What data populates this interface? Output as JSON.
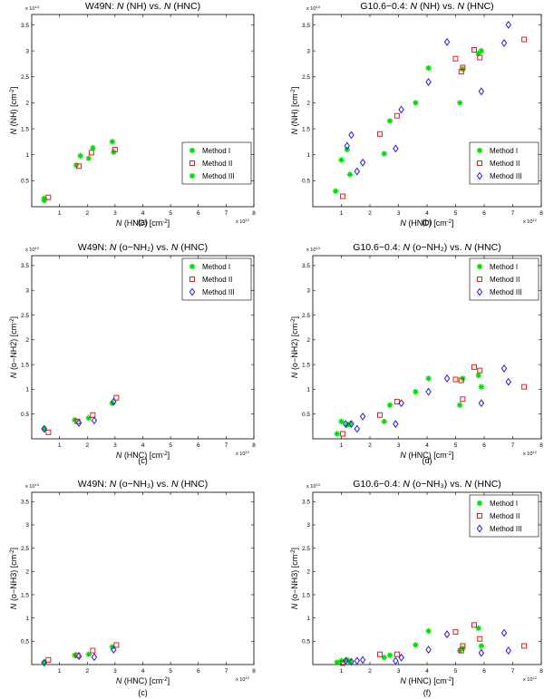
{
  "chart_data": [
    {
      "type": "scatter",
      "title_prefix": "W49N:  ",
      "title_n1": "N",
      "title_mid": " (NH) vs. ",
      "title_n2": "N",
      "title_suffix": " (HNC)",
      "ylabel": "N (NH) [cm^-2]",
      "xlabel": "N (HNC) [cm^-2]",
      "x_exp": "x 10^12",
      "y_exp": "x 10^13",
      "xlim": [
        0,
        8
      ],
      "ylim": [
        0,
        3.7
      ],
      "xticks": [
        "1",
        "2",
        "3",
        "4",
        "5",
        "6",
        "7",
        "8"
      ],
      "yticks": [
        "0.5",
        "1",
        "1.5",
        "2",
        "2.5",
        "3",
        "3.5"
      ],
      "caption": "(a)",
      "legend_position": "bottom-right",
      "series": [
        {
          "name": "Method I",
          "marker": "star",
          "color": "#00dd00",
          "points": [
            [
              0.45,
              0.16
            ],
            [
              1.6,
              0.8
            ],
            [
              2.05,
              0.93
            ],
            [
              2.95,
              1.05
            ]
          ]
        },
        {
          "name": "Method II",
          "marker": "square",
          "color": "#dd2222",
          "points": [
            [
              0.6,
              0.18
            ],
            [
              1.7,
              0.78
            ],
            [
              2.15,
              1.04
            ],
            [
              3.0,
              1.1
            ]
          ]
        },
        {
          "name": "Method III",
          "marker": "star",
          "color": "#00dd00",
          "points": [
            [
              0.45,
              0.12
            ],
            [
              1.75,
              0.98
            ],
            [
              2.2,
              1.13
            ],
            [
              2.9,
              1.25
            ]
          ]
        }
      ]
    },
    {
      "type": "scatter",
      "title_prefix": "G10.6−0.4:  ",
      "title_n1": "N",
      "title_mid": " (NH) vs. ",
      "title_n2": "N",
      "title_suffix": " (HNC)",
      "ylabel": "N (NH) [cm^-2]",
      "xlabel": "N (HNC) [cm^-2]",
      "x_exp": "x 10^12",
      "y_exp": "x 10^13",
      "xlim": [
        0,
        8
      ],
      "ylim": [
        0,
        3.7
      ],
      "xticks": [
        "1",
        "2",
        "3",
        "4",
        "5",
        "6",
        "7",
        "8"
      ],
      "yticks": [
        "0.5",
        "1",
        "1.5",
        "2",
        "2.5",
        "3",
        "3.5"
      ],
      "caption": "(b)",
      "legend_position": "bottom-right",
      "series": [
        {
          "name": "Method I",
          "marker": "star",
          "color": "#00dd00",
          "points": [
            [
              0.8,
              0.3
            ],
            [
              1.0,
              0.9
            ],
            [
              1.2,
              1.1
            ],
            [
              1.3,
              0.62
            ],
            [
              2.5,
              1.02
            ],
            [
              2.7,
              1.65
            ],
            [
              3.6,
              2.0
            ],
            [
              4.05,
              2.67
            ],
            [
              5.15,
              2.0
            ],
            [
              5.25,
              2.65
            ],
            [
              5.8,
              2.95
            ],
            [
              5.9,
              3.0
            ]
          ]
        },
        {
          "name": "Method II",
          "marker": "square",
          "color": "#dd2222",
          "points": [
            [
              1.05,
              0.2
            ],
            [
              2.35,
              1.4
            ],
            [
              2.95,
              1.75
            ],
            [
              5.0,
              2.85
            ],
            [
              5.2,
              2.6
            ],
            [
              5.25,
              2.68
            ],
            [
              5.65,
              3.02
            ],
            [
              5.85,
              2.87
            ],
            [
              7.4,
              3.22
            ]
          ]
        },
        {
          "name": "Method III",
          "marker": "diamond",
          "color": "#2222dd",
          "points": [
            [
              1.2,
              1.17
            ],
            [
              1.35,
              1.38
            ],
            [
              1.55,
              0.68
            ],
            [
              1.75,
              0.85
            ],
            [
              2.9,
              1.12
            ],
            [
              3.1,
              1.87
            ],
            [
              4.05,
              2.4
            ],
            [
              4.7,
              3.17
            ],
            [
              5.9,
              2.22
            ],
            [
              6.7,
              3.15
            ],
            [
              6.85,
              3.5
            ]
          ]
        }
      ]
    },
    {
      "type": "scatter",
      "title_prefix": "W49N:  ",
      "title_n1": "N",
      "title_mid": " (o−NH₂) vs. ",
      "title_n2": "N",
      "title_suffix": " (HNC)",
      "ylabel": "N (o−NH2) [cm^-2]",
      "xlabel": "N (HNC) [cm^-2]",
      "x_exp": "x 10^12",
      "y_exp": "x 10^13",
      "xlim": [
        0,
        8
      ],
      "ylim": [
        0,
        3.7
      ],
      "xticks": [
        "1",
        "2",
        "3",
        "4",
        "5",
        "6",
        "7",
        "8"
      ],
      "yticks": [
        "0.5",
        "1",
        "1.5",
        "2",
        "2.5",
        "3",
        "3.5"
      ],
      "caption": "(c)",
      "legend_position": "top-right",
      "series": [
        {
          "name": "Method I",
          "marker": "star",
          "color": "#00dd00",
          "points": [
            [
              0.45,
              0.2
            ],
            [
              1.55,
              0.38
            ],
            [
              2.05,
              0.42
            ],
            [
              2.9,
              0.72
            ]
          ]
        },
        {
          "name": "Method II",
          "marker": "square",
          "color": "#dd2222",
          "points": [
            [
              0.6,
              0.13
            ],
            [
              1.65,
              0.35
            ],
            [
              2.2,
              0.48
            ],
            [
              3.05,
              0.83
            ]
          ]
        },
        {
          "name": "Method III",
          "marker": "diamond",
          "color": "#2222dd",
          "points": [
            [
              0.45,
              0.2
            ],
            [
              1.7,
              0.32
            ],
            [
              2.25,
              0.37
            ],
            [
              2.95,
              0.75
            ]
          ]
        }
      ]
    },
    {
      "type": "scatter",
      "title_prefix": "G10.6−0.4:  ",
      "title_n1": "N",
      "title_mid": " (o−NH₂) vs. ",
      "title_n2": "N",
      "title_suffix": " (HNC)",
      "ylabel": "N (o−NH2) [cm^-2]",
      "xlabel": "N (HNC) [cm^-2]",
      "x_exp": "x 10^12",
      "y_exp": "x 10^13",
      "xlim": [
        0,
        8
      ],
      "ylim": [
        0,
        3.7
      ],
      "xticks": [
        "1",
        "2",
        "3",
        "4",
        "5",
        "6",
        "7",
        "8"
      ],
      "yticks": [
        "0.5",
        "1",
        "1.5",
        "2",
        "2.5",
        "3",
        "3.5"
      ],
      "caption": "(d)",
      "legend_position": "top-right",
      "series": [
        {
          "name": "Method I",
          "marker": "star",
          "color": "#00dd00",
          "points": [
            [
              0.85,
              0.1
            ],
            [
              1.0,
              0.35
            ],
            [
              1.2,
              0.28
            ],
            [
              1.3,
              0.3
            ],
            [
              2.5,
              0.35
            ],
            [
              2.7,
              0.68
            ],
            [
              3.6,
              0.95
            ],
            [
              4.05,
              1.22
            ],
            [
              5.15,
              0.68
            ],
            [
              5.25,
              1.22
            ],
            [
              5.8,
              1.28
            ],
            [
              5.9,
              1.05
            ]
          ]
        },
        {
          "name": "Method II",
          "marker": "square",
          "color": "#dd2222",
          "points": [
            [
              1.05,
              0.1
            ],
            [
              2.35,
              0.48
            ],
            [
              2.95,
              0.75
            ],
            [
              5.0,
              1.2
            ],
            [
              5.2,
              1.18
            ],
            [
              5.25,
              0.8
            ],
            [
              5.65,
              1.45
            ],
            [
              5.85,
              1.38
            ],
            [
              7.4,
              1.05
            ]
          ]
        },
        {
          "name": "Method III",
          "marker": "diamond",
          "color": "#2222dd",
          "points": [
            [
              1.15,
              0.3
            ],
            [
              1.35,
              0.3
            ],
            [
              1.55,
              0.2
            ],
            [
              1.75,
              0.45
            ],
            [
              2.9,
              0.3
            ],
            [
              3.1,
              0.72
            ],
            [
              4.05,
              0.95
            ],
            [
              4.7,
              1.22
            ],
            [
              5.9,
              0.72
            ],
            [
              6.7,
              1.42
            ],
            [
              6.85,
              1.15
            ]
          ]
        }
      ]
    },
    {
      "type": "scatter",
      "title_prefix": "W49N:  ",
      "title_n1": "N",
      "title_mid": " (o−NH₃) vs. ",
      "title_n2": "N",
      "title_suffix": " (HNC)",
      "ylabel": "N (o−NH3) [cm^-2]",
      "xlabel": "N (HNC) [cm^-2]",
      "x_exp": "x 10^12",
      "y_exp": "x 10^13",
      "xlim": [
        0,
        8
      ],
      "ylim": [
        0,
        3.7
      ],
      "xticks": [
        "1",
        "2",
        "3",
        "4",
        "5",
        "6",
        "7",
        "8"
      ],
      "yticks": [
        "0.5",
        "1",
        "1.5",
        "2",
        "2.5",
        "3",
        "3.5"
      ],
      "caption": "(c)",
      "legend_position": "none",
      "series": [
        {
          "name": "Method I",
          "marker": "star",
          "color": "#00dd00",
          "points": [
            [
              0.45,
              0.04
            ],
            [
              1.55,
              0.2
            ],
            [
              2.05,
              0.22
            ],
            [
              2.9,
              0.38
            ]
          ]
        },
        {
          "name": "Method II",
          "marker": "square",
          "color": "#dd2222",
          "points": [
            [
              0.6,
              0.1
            ],
            [
              1.65,
              0.2
            ],
            [
              2.2,
              0.3
            ],
            [
              3.05,
              0.42
            ]
          ]
        },
        {
          "name": "Method III",
          "marker": "diamond",
          "color": "#2222dd",
          "points": [
            [
              0.45,
              0.04
            ],
            [
              1.7,
              0.18
            ],
            [
              2.25,
              0.16
            ],
            [
              2.95,
              0.32
            ]
          ]
        }
      ]
    },
    {
      "type": "scatter",
      "title_prefix": "G10.6−0.4:  ",
      "title_n1": "N",
      "title_mid": " (o−NH₃) vs. ",
      "title_n2": "N",
      "title_suffix": " (HNC)",
      "ylabel": "N (o−NH3) [cm^-2]",
      "xlabel": "N (HNC) [cm^-2]",
      "x_exp": "x 10^12",
      "y_exp": "x 10^13",
      "xlim": [
        0,
        8
      ],
      "ylim": [
        0,
        3.7
      ],
      "xticks": [
        "1",
        "2",
        "3",
        "4",
        "5",
        "6",
        "7",
        "8"
      ],
      "yticks": [
        "0.5",
        "1",
        "1.5",
        "2",
        "2.5",
        "3",
        "3.5"
      ],
      "caption": "(f)",
      "legend_position": "top-right",
      "series": [
        {
          "name": "Method I",
          "marker": "star",
          "color": "#00dd00",
          "points": [
            [
              0.85,
              0.05
            ],
            [
              1.0,
              0.08
            ],
            [
              1.2,
              0.1
            ],
            [
              1.3,
              0.06
            ],
            [
              2.5,
              0.15
            ],
            [
              2.7,
              0.2
            ],
            [
              3.6,
              0.42
            ],
            [
              4.05,
              0.72
            ],
            [
              5.15,
              0.3
            ],
            [
              5.25,
              0.35
            ],
            [
              5.8,
              0.78
            ],
            [
              5.9,
              0.4
            ]
          ]
        },
        {
          "name": "Method II",
          "marker": "square",
          "color": "#dd2222",
          "points": [
            [
              1.05,
              0.03
            ],
            [
              2.35,
              0.22
            ],
            [
              2.95,
              0.22
            ],
            [
              5.0,
              0.7
            ],
            [
              5.2,
              0.3
            ],
            [
              5.25,
              0.4
            ],
            [
              5.65,
              0.85
            ],
            [
              5.85,
              0.55
            ],
            [
              7.4,
              0.4
            ]
          ]
        },
        {
          "name": "Method III",
          "marker": "diamond",
          "color": "#2222dd",
          "points": [
            [
              1.15,
              0.08
            ],
            [
              1.35,
              0.06
            ],
            [
              1.55,
              0.08
            ],
            [
              1.75,
              0.1
            ],
            [
              2.9,
              0.08
            ],
            [
              3.1,
              0.15
            ],
            [
              4.05,
              0.32
            ],
            [
              4.7,
              0.65
            ],
            [
              5.9,
              0.25
            ],
            [
              6.7,
              0.68
            ],
            [
              6.85,
              0.3
            ]
          ]
        }
      ]
    }
  ]
}
